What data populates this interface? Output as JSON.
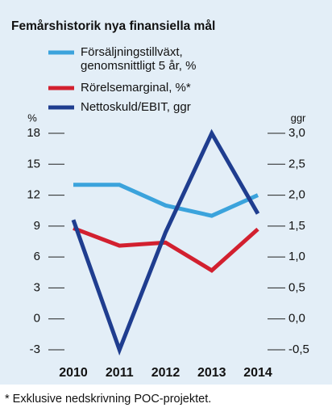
{
  "chart_data": {
    "type": "line",
    "title": "Femårshistorik nya finansiella mål",
    "y_label": "%",
    "y2_label": "ggr",
    "footnote": "* Exklusive nedskrivning POC-projektet.",
    "categories": [
      "2010",
      "2011",
      "2012",
      "2013",
      "2014"
    ],
    "series": [
      {
        "name": "Försäljningstillväxt,\ngenomsnittligt 5 år, %",
        "color": "#3ba3dc",
        "values": [
          13,
          13,
          11,
          10,
          12
        ]
      },
      {
        "name": "Rörelsemarginal, %*",
        "color": "#d2202f",
        "values": [
          8.8,
          7.1,
          7.4,
          4.7,
          8.7
        ]
      },
      {
        "name": "Nettoskuld/EBIT, ggr",
        "color": "#1f3d8f",
        "axis": "y2",
        "values": [
          1.6,
          -0.5,
          1.4,
          3.0,
          1.7
        ]
      }
    ],
    "ylim": [
      -3,
      18
    ],
    "yticks": [
      -3,
      0,
      3,
      6,
      9,
      12,
      15,
      18
    ],
    "y2lim": [
      -0.5,
      3.0
    ],
    "y2ticks": [
      {
        "value": -0.5,
        "label": "-0,5"
      },
      {
        "value": 0,
        "label": "0,0"
      },
      {
        "value": 0.5,
        "label": "0,5"
      },
      {
        "value": 1,
        "label": "1,0"
      },
      {
        "value": 1.5,
        "label": "1,5"
      },
      {
        "value": 2,
        "label": "2,0"
      },
      {
        "value": 2.5,
        "label": "2,5"
      },
      {
        "value": 3,
        "label": "3,0"
      }
    ]
  }
}
